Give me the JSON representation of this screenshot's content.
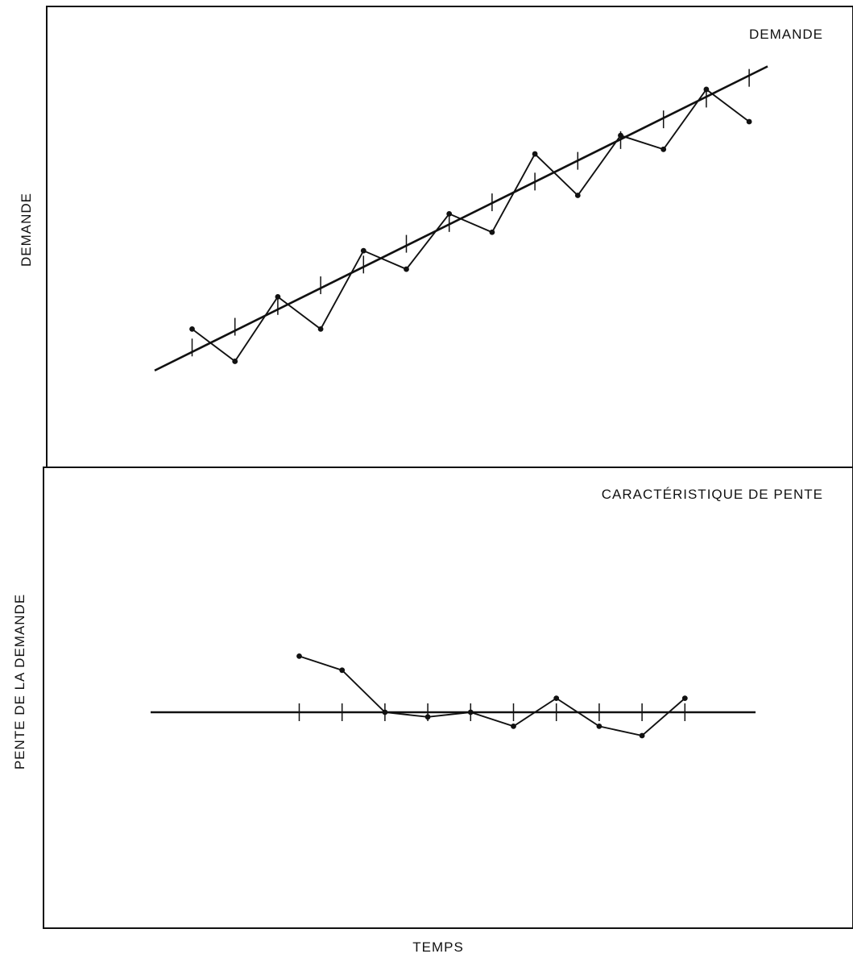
{
  "chart_data": [
    {
      "type": "line",
      "panel": "top",
      "title": "DEMANDE",
      "ylabel": "DEMANDE",
      "xlabel": "",
      "grid": false,
      "xlim": [
        -1,
        15
      ],
      "ylim": [
        0,
        10
      ],
      "series": [
        {
          "x": [
            0,
            1,
            2,
            3,
            4,
            5,
            6,
            7,
            8,
            9,
            10,
            11,
            12,
            13
          ],
          "values": [
            3.0,
            2.3,
            3.7,
            3.0,
            4.7,
            4.3,
            5.5,
            5.1,
            6.8,
            5.9,
            7.2,
            6.9,
            8.2,
            7.5
          ]
        },
        {
          "x": [
            -0.85,
            13.4
          ],
          "values": [
            2.1,
            8.7
          ]
        }
      ],
      "fitted_ticks": {
        "x": [
          0,
          1,
          2,
          3,
          4,
          5,
          6,
          7,
          8,
          9,
          10,
          11,
          12,
          13
        ],
        "values": [
          2.6,
          3.05,
          3.5,
          3.95,
          4.4,
          4.85,
          5.3,
          5.75,
          6.2,
          6.65,
          7.1,
          7.55,
          8.0,
          8.45
        ]
      }
    },
    {
      "type": "line",
      "panel": "bottom",
      "title": "CARACTÉRISTIQUE DE PENTE",
      "ylabel": "PENTE DE LA DEMANDE",
      "xlabel": "TEMPS",
      "grid": false,
      "xlim": [
        -1,
        15
      ],
      "ylim": [
        -2,
        2
      ],
      "series": [
        {
          "x": [
            2.5,
            3.5,
            4.5,
            5.5,
            6.5,
            7.5,
            8.5,
            9.5,
            10.5,
            11.5
          ],
          "values": [
            0.6,
            0.45,
            0.0,
            -0.05,
            0.0,
            -0.15,
            0.15,
            -0.15,
            -0.25,
            0.15
          ]
        },
        {
          "x": [
            -1,
            14.2
          ],
          "values": [
            0,
            0
          ]
        }
      ],
      "zero_line_ticks": {
        "x": [
          2.5,
          3.5,
          4.5,
          5.5,
          6.5,
          7.5,
          8.5,
          9.5,
          10.5,
          11.5
        ],
        "values": [
          0,
          0,
          0,
          0,
          0,
          0,
          0,
          0,
          0,
          0
        ]
      }
    }
  ]
}
